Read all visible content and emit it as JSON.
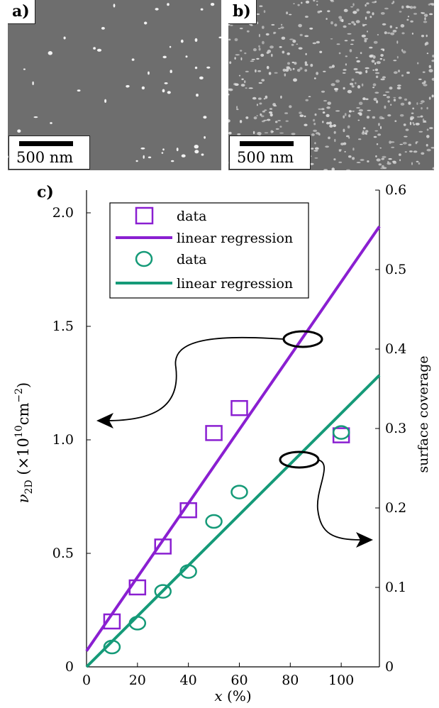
{
  "panel_a": {
    "tag": "a)",
    "scale_label": "500 nm"
  },
  "panel_b": {
    "tag": "b)",
    "scale_label": "500 nm"
  },
  "chart_data": {
    "type": "scatter",
    "panel_label": "c)",
    "xlabel": "x (%)",
    "ylabel_left": "ν2D (×10^10 cm^−2)",
    "ylabel_right": "surface coverage",
    "x_ticks": [
      0,
      20,
      40,
      60,
      80,
      100
    ],
    "y_left_ticks": [
      "0",
      "0.5",
      "1.0",
      "1.5",
      "2.0"
    ],
    "y_right_ticks": [
      "0",
      "0.1",
      "0.2",
      "0.3",
      "0.4",
      "0.5",
      "0.6"
    ],
    "xlim": [
      0,
      115
    ],
    "ylim_left": [
      0,
      2.1
    ],
    "ylim_right": [
      0,
      0.6
    ],
    "series": [
      {
        "name": "data",
        "axis": "left",
        "marker": "square",
        "color": "#8a1fd1",
        "x": [
          10,
          20,
          30,
          40,
          50,
          60,
          100
        ],
        "y": [
          0.2,
          0.35,
          0.53,
          0.69,
          1.03,
          1.14,
          1.02
        ]
      },
      {
        "name": "linear regression",
        "axis": "left",
        "style": "line",
        "color": "#8a1fd1",
        "x": [
          0,
          115
        ],
        "y": [
          0.07,
          1.94
        ]
      },
      {
        "name": "data",
        "axis": "right",
        "marker": "circle",
        "color": "#159a78",
        "x": [
          10,
          20,
          30,
          40,
          50,
          60,
          100
        ],
        "y": [
          0.025,
          0.055,
          0.095,
          0.12,
          0.183,
          0.22,
          0.295
        ]
      },
      {
        "name": "linear regression",
        "axis": "right",
        "style": "line",
        "color": "#159a78",
        "x": [
          0,
          115
        ],
        "y": [
          0.0,
          0.367
        ]
      }
    ]
  }
}
